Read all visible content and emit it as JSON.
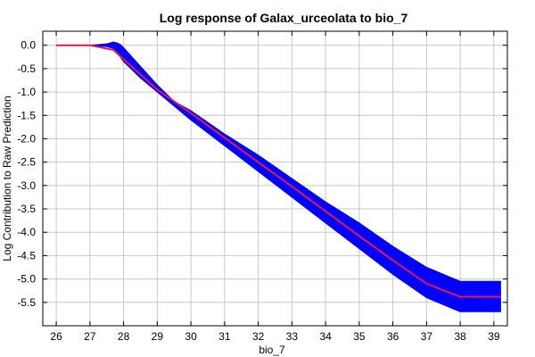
{
  "chart_data": {
    "type": "area",
    "title": "Log response of Galax_urceolata to bio_7",
    "xlabel": "bio_7",
    "ylabel": "Log Contribution to Raw Prediction",
    "xlim": [
      25.6,
      39.4
    ],
    "ylim": [
      -6.0,
      0.3
    ],
    "xticks": [
      26,
      27,
      28,
      29,
      30,
      31,
      32,
      33,
      34,
      35,
      36,
      37,
      38,
      39
    ],
    "yticks": [
      0.0,
      -0.5,
      -1.0,
      -1.5,
      -2.0,
      -2.5,
      -3.0,
      -3.5,
      -4.0,
      -4.5,
      -5.0,
      -5.5
    ],
    "grid": true,
    "series": [
      {
        "role": "band",
        "color": "#0000ff",
        "x": [
          26.0,
          27.0,
          27.5,
          27.6,
          27.7,
          27.8,
          27.9,
          28.0,
          28.5,
          29.0,
          29.5,
          30.0,
          31.0,
          32.0,
          33.0,
          34.0,
          35.0,
          36.0,
          37.0,
          38.0,
          38.05,
          39.2
        ],
        "upper": [
          0.0,
          0.0,
          0.03,
          0.05,
          0.07,
          0.05,
          0.02,
          -0.05,
          -0.45,
          -0.85,
          -1.2,
          -1.4,
          -1.9,
          -2.35,
          -2.85,
          -3.35,
          -3.8,
          -4.3,
          -4.75,
          -5.05,
          -5.05,
          -5.05
        ],
        "lower": [
          0.0,
          0.0,
          -0.03,
          -0.05,
          -0.07,
          -0.15,
          -0.25,
          -0.35,
          -0.7,
          -1.0,
          -1.3,
          -1.6,
          -2.15,
          -2.7,
          -3.25,
          -3.8,
          -4.35,
          -4.9,
          -5.4,
          -5.7,
          -5.7,
          -5.7
        ]
      },
      {
        "role": "mean",
        "color": "#e8174a",
        "x": [
          26.0,
          27.0,
          27.7,
          28.0,
          29.0,
          30.0,
          31.0,
          32.0,
          33.0,
          34.0,
          35.0,
          36.0,
          37.0,
          38.0,
          39.2
        ],
        "y": [
          0.0,
          0.0,
          -0.1,
          -0.3,
          -0.95,
          -1.45,
          -1.98,
          -2.5,
          -3.02,
          -3.55,
          -4.08,
          -4.6,
          -5.1,
          -5.38,
          -5.38
        ]
      }
    ]
  }
}
